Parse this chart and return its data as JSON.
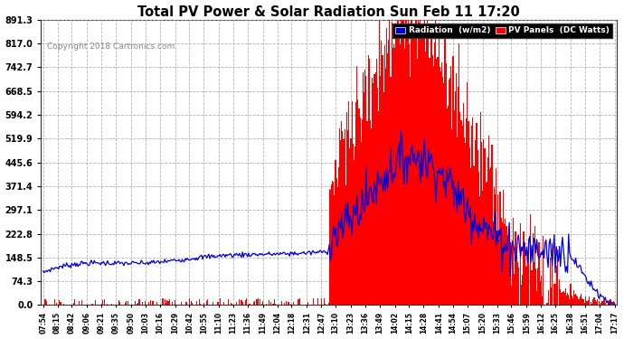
{
  "title": "Total PV Power & Solar Radiation Sun Feb 11 17:20",
  "copyright": "Copyright 2018 Cartronics.com",
  "bg_color": "#ffffff",
  "plot_bg_color": "#f8f8f8",
  "grid_color": "#cccccc",
  "radiation_color": "#0000dd",
  "pv_color": "#ff0000",
  "yticks": [
    0.0,
    74.3,
    148.5,
    222.8,
    297.1,
    371.4,
    445.6,
    519.9,
    594.2,
    668.5,
    742.7,
    817.0,
    891.3
  ],
  "ymax": 891.3,
  "legend_radiation_label": "Radiation  (w/m2)",
  "legend_pv_label": "PV Panels  (DC Watts)",
  "time_labels": [
    "07:54",
    "08:15",
    "08:42",
    "09:06",
    "09:21",
    "09:35",
    "09:50",
    "10:03",
    "10:16",
    "10:29",
    "10:42",
    "10:55",
    "11:10",
    "11:23",
    "11:36",
    "11:49",
    "12:04",
    "12:18",
    "12:31",
    "12:47",
    "13:10",
    "13:23",
    "13:36",
    "13:49",
    "14:02",
    "14:15",
    "14:28",
    "14:41",
    "14:54",
    "15:07",
    "15:20",
    "15:33",
    "15:46",
    "15:59",
    "16:12",
    "16:25",
    "16:38",
    "16:51",
    "17:04",
    "17:17"
  ]
}
